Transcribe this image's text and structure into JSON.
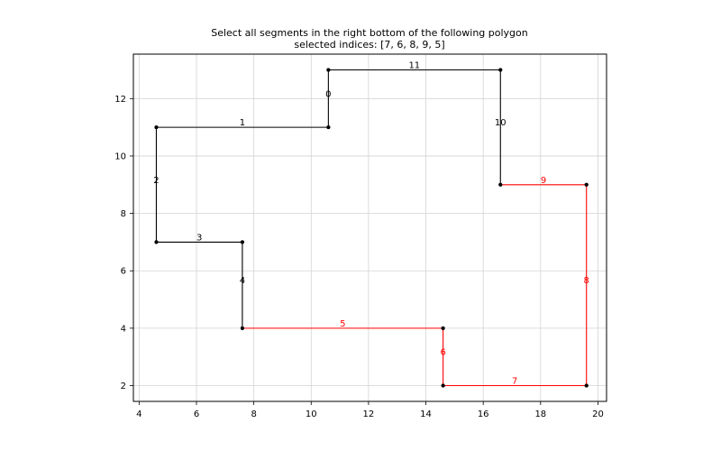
{
  "chart_data": {
    "type": "line",
    "title": "Select all segments in the right bottom of the following polygon",
    "subtitle": "selected indices: [7, 6, 8, 9, 5]",
    "xlabel": "",
    "ylabel": "",
    "xlim": [
      3.8,
      20.3
    ],
    "ylim": [
      1.45,
      13.55
    ],
    "xticks": [
      4,
      6,
      8,
      10,
      12,
      14,
      16,
      18,
      20
    ],
    "yticks": [
      2,
      4,
      6,
      8,
      10,
      12
    ],
    "grid": true,
    "selected": [
      7,
      6,
      8,
      9,
      5
    ],
    "colors": {
      "normal": "#000000",
      "selected": "#ff0000",
      "grid": "#d3d3d3"
    },
    "segments": [
      {
        "index": 0,
        "from": [
          10.6,
          13.0
        ],
        "to": [
          10.6,
          11.0
        ]
      },
      {
        "index": 1,
        "from": [
          10.6,
          11.0
        ],
        "to": [
          4.6,
          11.0
        ]
      },
      {
        "index": 2,
        "from": [
          4.6,
          11.0
        ],
        "to": [
          4.6,
          7.0
        ]
      },
      {
        "index": 3,
        "from": [
          4.6,
          7.0
        ],
        "to": [
          7.6,
          7.0
        ]
      },
      {
        "index": 4,
        "from": [
          7.6,
          7.0
        ],
        "to": [
          7.6,
          4.0
        ]
      },
      {
        "index": 5,
        "from": [
          7.6,
          4.0
        ],
        "to": [
          14.6,
          4.0
        ]
      },
      {
        "index": 6,
        "from": [
          14.6,
          4.0
        ],
        "to": [
          14.6,
          2.0
        ]
      },
      {
        "index": 7,
        "from": [
          14.6,
          2.0
        ],
        "to": [
          19.6,
          2.0
        ]
      },
      {
        "index": 8,
        "from": [
          19.6,
          2.0
        ],
        "to": [
          19.6,
          9.0
        ]
      },
      {
        "index": 9,
        "from": [
          19.6,
          9.0
        ],
        "to": [
          16.6,
          9.0
        ]
      },
      {
        "index": 10,
        "from": [
          16.6,
          9.0
        ],
        "to": [
          16.6,
          13.0
        ]
      },
      {
        "index": 11,
        "from": [
          16.6,
          13.0
        ],
        "to": [
          10.6,
          13.0
        ]
      }
    ]
  }
}
